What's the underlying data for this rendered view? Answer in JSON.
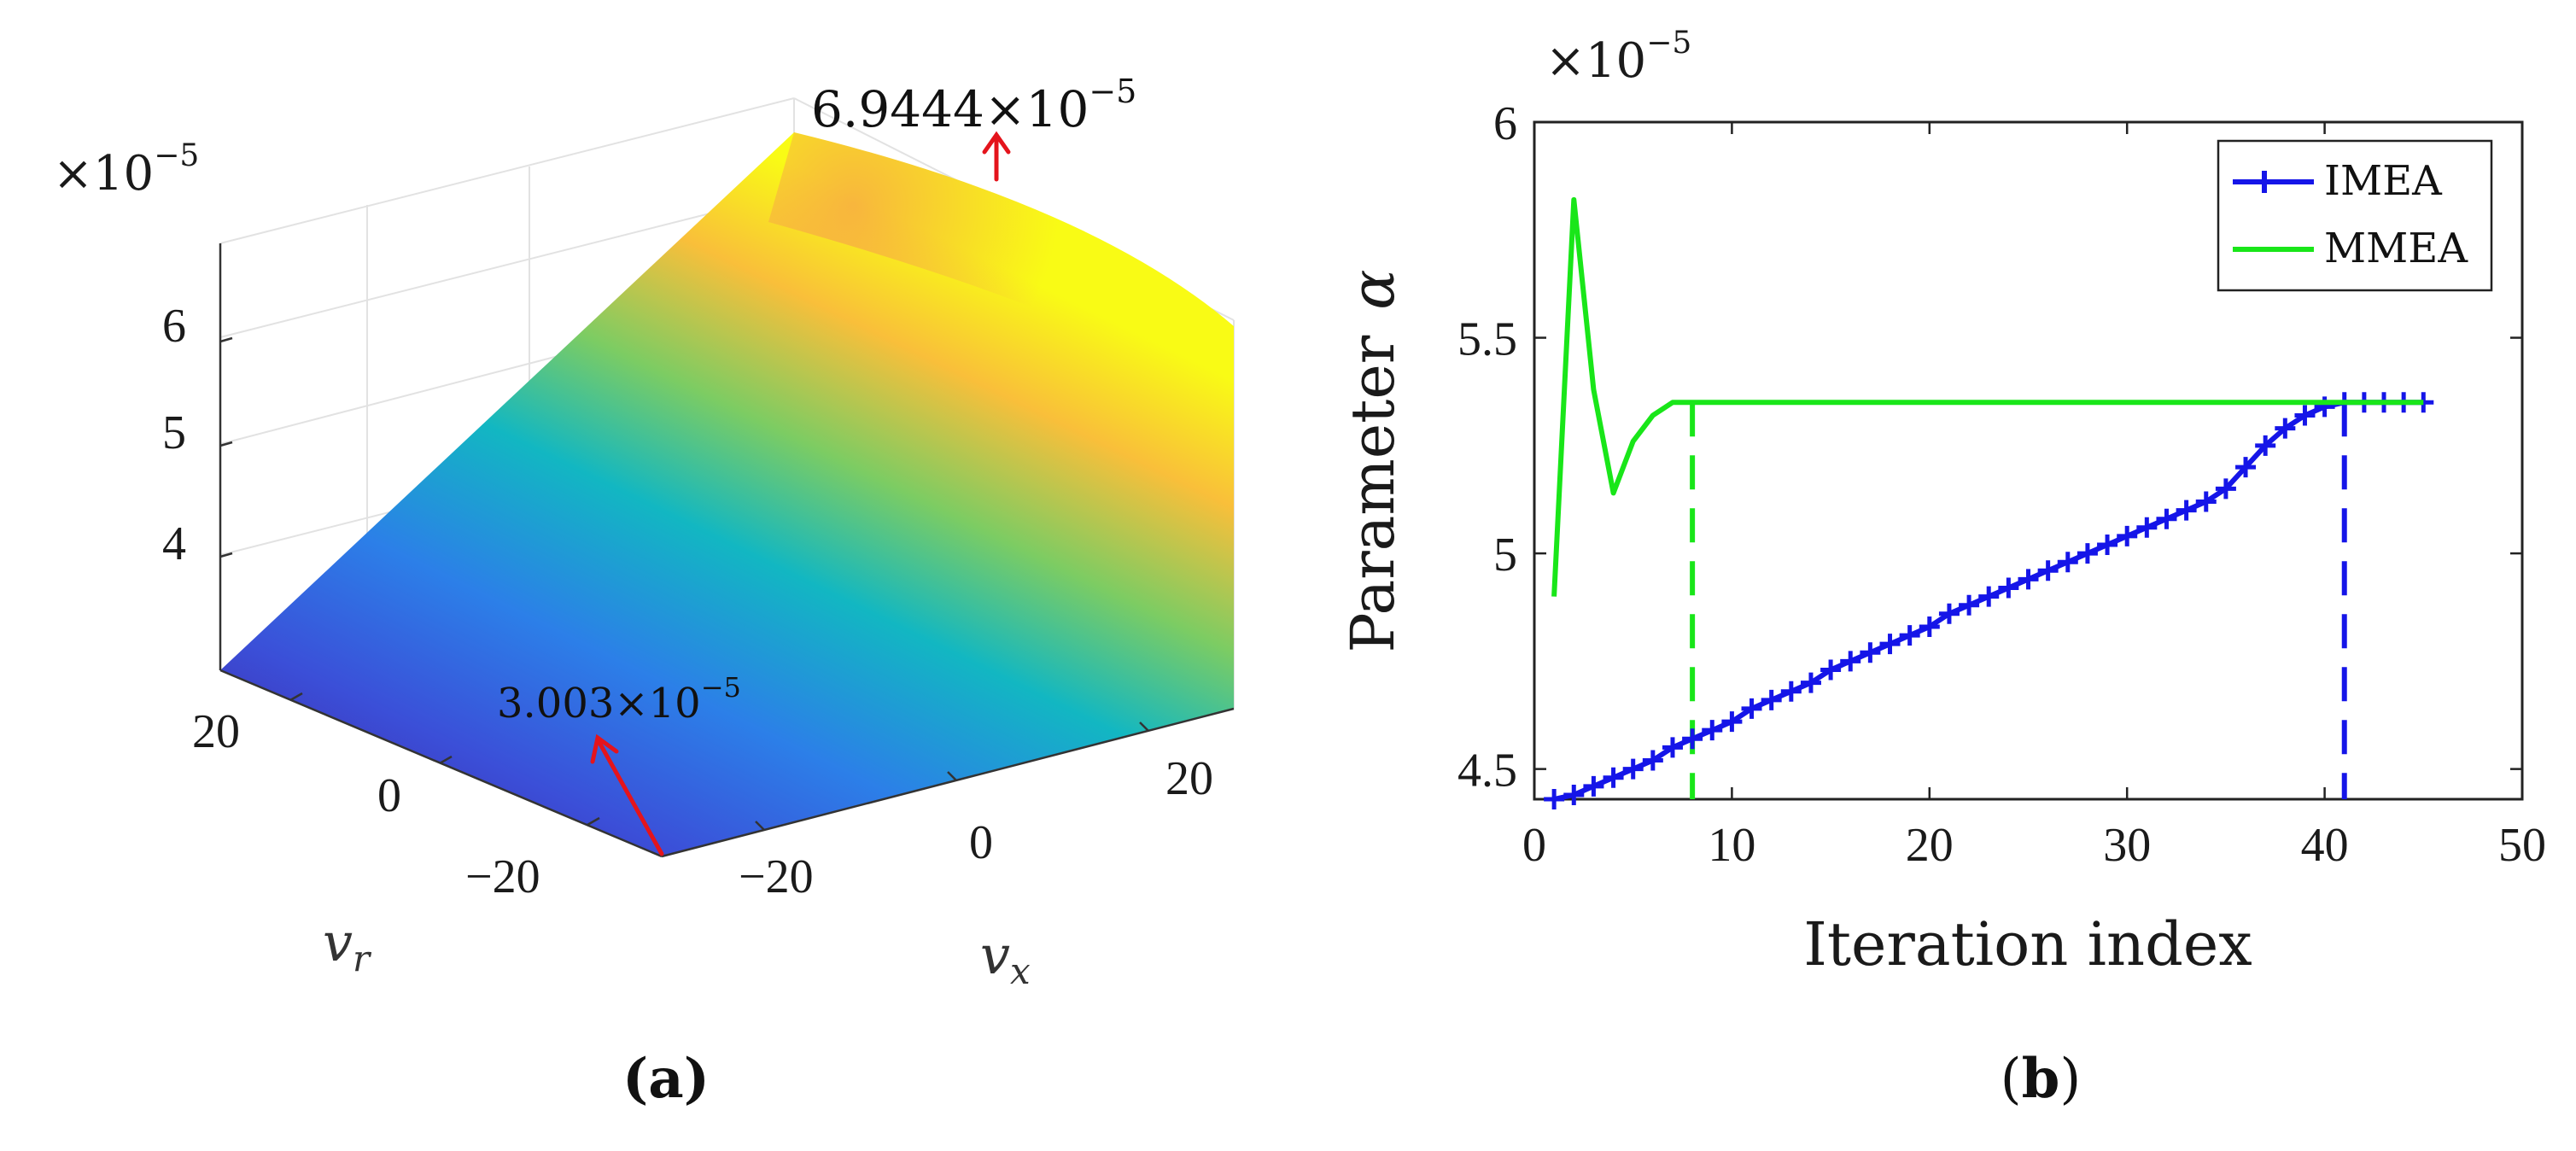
{
  "chart_data": [
    {
      "panel": "(a)",
      "type": "surface3d",
      "z_exponent_label": "×10",
      "z_exponent_power": "−5",
      "z_ticks": [
        "4",
        "5",
        "6"
      ],
      "x_axis": {
        "label": "v",
        "subscript": "x",
        "ticks": [
          "−20",
          "0",
          "20"
        ]
      },
      "r_axis": {
        "label": "v",
        "subscript": "r",
        "ticks": [
          "−20",
          "0",
          "20"
        ]
      },
      "annotations": {
        "max": {
          "mantissa": "6.9444×10",
          "power": "−5",
          "value": 6.9444e-05
        },
        "min": {
          "mantissa": "3.003×10",
          "power": "−5",
          "value": 3.003e-05
        }
      },
      "colormap": [
        "#3e26a8",
        "#2c7fe8",
        "#12b7c2",
        "#7ccc63",
        "#f9bf3a",
        "#f9fb15"
      ]
    },
    {
      "panel": "(b)",
      "type": "line",
      "exponent_label": "×10",
      "exponent_power": "−5",
      "xlabel": "Iteration index",
      "ylabel_text": "Parameter",
      "ylabel_symbol": "α",
      "xlim": [
        0,
        50
      ],
      "ylim": [
        4.43,
        6.0
      ],
      "x_ticks": [
        "0",
        "10",
        "20",
        "30",
        "40",
        "50"
      ],
      "y_ticks": [
        "4.5",
        "5",
        "5.5",
        "6"
      ],
      "x_tick_values": [
        0,
        10,
        20,
        30,
        40,
        50
      ],
      "y_tick_values": [
        4.5,
        5.0,
        5.5,
        6.0
      ],
      "legend": [
        "IMEA",
        "MMEA"
      ],
      "series": [
        {
          "name": "IMEA",
          "color": "#1515e8",
          "marker": "plus",
          "x": [
            1,
            2,
            3,
            4,
            5,
            6,
            7,
            8,
            9,
            10,
            11,
            12,
            13,
            14,
            15,
            16,
            17,
            18,
            19,
            20,
            21,
            22,
            23,
            24,
            25,
            26,
            27,
            28,
            29,
            30,
            31,
            32,
            33,
            34,
            35,
            36,
            37,
            38,
            39,
            40,
            41,
            42,
            43,
            44,
            45
          ],
          "values": [
            4.43,
            4.44,
            4.46,
            4.48,
            4.5,
            4.52,
            4.55,
            4.57,
            4.59,
            4.61,
            4.64,
            4.66,
            4.68,
            4.7,
            4.73,
            4.75,
            4.77,
            4.79,
            4.81,
            4.83,
            4.86,
            4.88,
            4.9,
            4.92,
            4.94,
            4.96,
            4.98,
            5.0,
            5.02,
            5.04,
            5.06,
            5.08,
            5.1,
            5.12,
            5.15,
            5.2,
            5.25,
            5.29,
            5.32,
            5.34,
            5.35,
            5.35,
            5.35,
            5.35,
            5.35
          ]
        },
        {
          "name": "MMEA",
          "color": "#19e619",
          "marker": "none",
          "x": [
            1,
            2,
            3,
            4,
            5,
            6,
            7,
            8,
            9,
            10,
            15,
            20,
            25,
            30,
            35,
            40,
            45
          ],
          "values": [
            4.9,
            5.82,
            5.38,
            5.14,
            5.26,
            5.32,
            5.35,
            5.35,
            5.35,
            5.35,
            5.35,
            5.35,
            5.35,
            5.35,
            5.35,
            5.35,
            5.35
          ]
        }
      ],
      "convergence_markers": [
        {
          "series": "MMEA",
          "x": 8,
          "y": 5.35,
          "color": "#19e619"
        },
        {
          "series": "IMEA",
          "x": 41,
          "y": 5.35,
          "color": "#1515e8"
        }
      ]
    }
  ],
  "captions": {
    "a": "(a)",
    "b_open": "(",
    "b_letter": "b",
    "b_close": ")"
  }
}
